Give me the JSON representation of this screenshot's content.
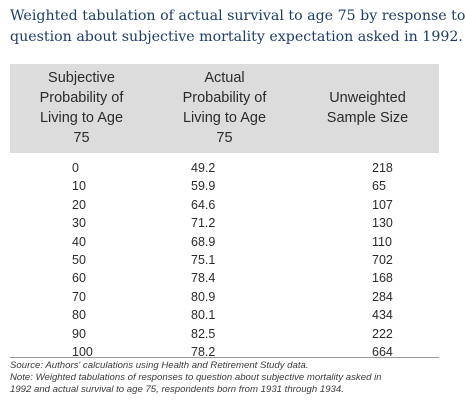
{
  "title": {
    "line1": "Weighted tabulation of actual survival to age 75 by response to",
    "line2": "question about subjective mortality expectation asked in 1992."
  },
  "table": {
    "headers": [
      [
        "Subjective",
        "Probability of",
        "Living to Age",
        "75"
      ],
      [
        "Actual",
        "Probability of",
        "Living to Age",
        "75"
      ],
      [
        "Unweighted",
        "Sample Size"
      ]
    ],
    "rows": [
      [
        "0",
        "49.2",
        "218"
      ],
      [
        "10",
        "59.9",
        "65"
      ],
      [
        "20",
        "64.6",
        "107"
      ],
      [
        "30",
        "71.2",
        "130"
      ],
      [
        "40",
        "68.9",
        "110"
      ],
      [
        "50",
        "75.1",
        "702"
      ],
      [
        "60",
        "78.4",
        "168"
      ],
      [
        "70",
        "80.9",
        "284"
      ],
      [
        "80",
        "80.1",
        "434"
      ],
      [
        "90",
        "82.5",
        "222"
      ],
      [
        "100",
        "78.2",
        "664"
      ]
    ]
  },
  "notes": {
    "source": "Source:  Authors' calculations using Health and Retirement Study data.",
    "note_line1": "Note:  Weighted tabulations of responses to question about subjective mortality asked in",
    "note_line2": "1992 and actual survival to age 75, respondents born from 1931 through 1934."
  }
}
